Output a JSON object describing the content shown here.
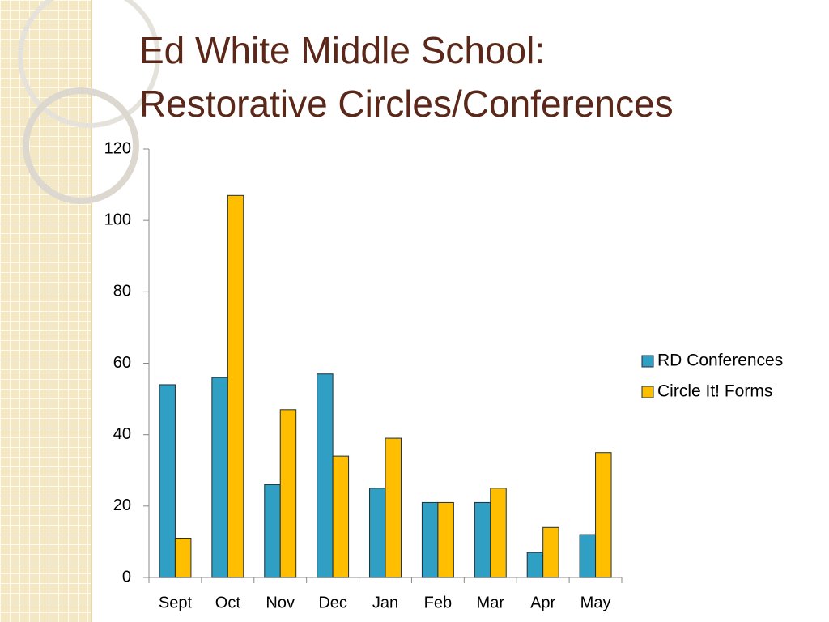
{
  "chart_data": {
    "type": "bar",
    "title": [
      "Ed White Middle School:",
      "Restorative Circles/Conferences"
    ],
    "categories": [
      "Sept",
      "Oct",
      "Nov",
      "Dec",
      "Jan",
      "Feb",
      "Mar",
      "Apr",
      "May"
    ],
    "series": [
      {
        "name": "RD Conferences",
        "color": "#2f9fc4",
        "values": [
          54,
          56,
          26,
          57,
          25,
          21,
          21,
          7,
          12
        ]
      },
      {
        "name": "Circle It! Forms",
        "color": "#ffbf00",
        "values": [
          11,
          107,
          47,
          34,
          39,
          21,
          25,
          14,
          35
        ]
      }
    ],
    "ylim": [
      0,
      120
    ],
    "yticks": [
      0,
      20,
      40,
      60,
      80,
      100,
      120
    ],
    "grid": false,
    "legend": "right"
  }
}
